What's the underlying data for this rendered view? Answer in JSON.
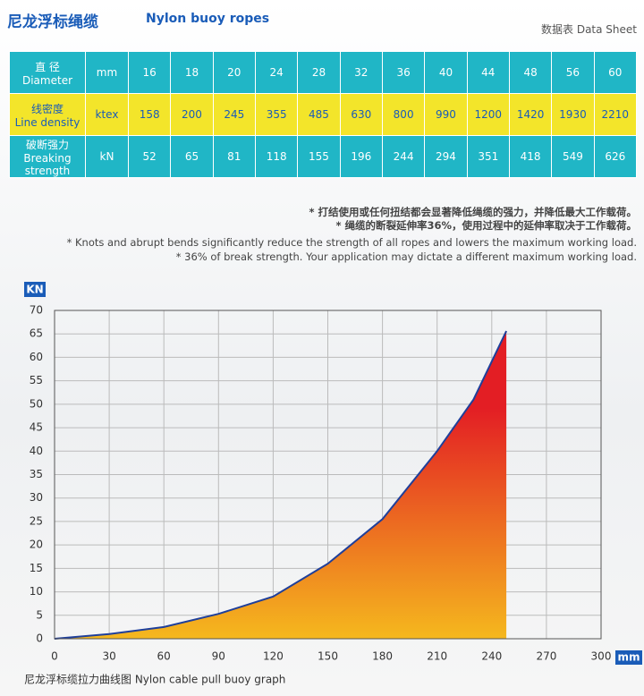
{
  "header": {
    "title_cn": "尼龙浮标绳缆",
    "title_en": "Nylon buoy ropes",
    "sheet": "数据表  Data Sheet"
  },
  "table": {
    "rows": [
      {
        "label_cn": "直 径",
        "label_en": "Diameter",
        "unit": "mm",
        "values": [
          16,
          18,
          20,
          24,
          28,
          32,
          36,
          40,
          44,
          48,
          56,
          60
        ]
      },
      {
        "label_cn": "线密度",
        "label_en": "Line density",
        "unit": "ktex",
        "values": [
          158,
          200,
          245,
          355,
          485,
          630,
          800,
          990,
          1200,
          1420,
          1930,
          2210
        ]
      },
      {
        "label_cn": "破断强力",
        "label_en": "Breaking strength",
        "unit": "kN",
        "values": [
          52,
          65,
          81,
          118,
          155,
          196,
          244,
          294,
          351,
          418,
          549,
          626
        ]
      }
    ]
  },
  "notes": [
    "* 打结使用或任何扭结都会显著降低绳缆的强力，并降低最大工作载荷。",
    "* 绳缆的断裂延伸率36%，使用过程中的延伸率取决于工作载荷。",
    "* Knots and abrupt bends significantly reduce the strength of all ropes and lowers the maximum working load.",
    "* 36% of break strength. Your application may dictate a different maximum working load."
  ],
  "chart_data": {
    "type": "area",
    "y_label": "KN",
    "x_label": "mm",
    "caption": "尼龙浮标缆拉力曲线图  Nylon cable pull buoy graph",
    "x": [
      0,
      30,
      60,
      90,
      120,
      150,
      180,
      210,
      230,
      248
    ],
    "values": [
      0,
      1,
      2.5,
      5.3,
      9,
      16,
      25.5,
      40,
      51,
      65.6
    ],
    "fill_colors": [
      "#e31e24",
      "#f5b81e"
    ],
    "line_color": "#1f3f9a",
    "xlim": [
      0,
      300
    ],
    "xticks": [
      0,
      30,
      60,
      90,
      120,
      150,
      180,
      210,
      240,
      270,
      300
    ],
    "ylim": [
      0,
      70
    ],
    "yticks": [
      0,
      5,
      10,
      15,
      20,
      25,
      30,
      35,
      40,
      45,
      50,
      55,
      60,
      65,
      70
    ],
    "grid": true
  }
}
